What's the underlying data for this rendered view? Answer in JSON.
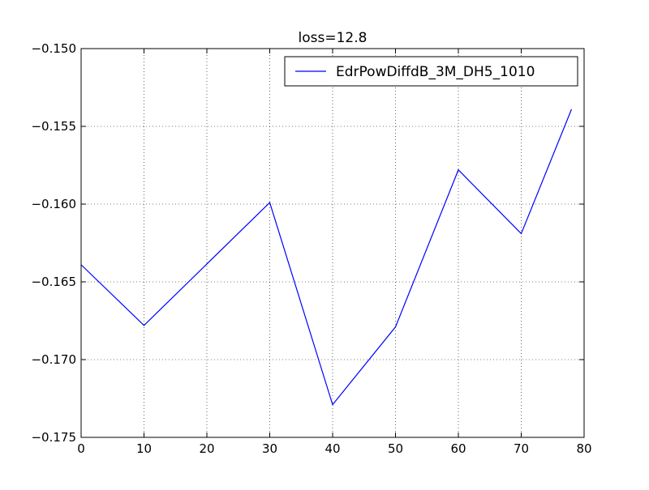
{
  "chart_data": {
    "type": "line",
    "title": "loss=12.8",
    "xlabel": "",
    "ylabel": "",
    "xlim": [
      0,
      80
    ],
    "ylim": [
      -0.175,
      -0.15
    ],
    "xticks": [
      0,
      10,
      20,
      30,
      40,
      50,
      60,
      70,
      80
    ],
    "xtick_labels": [
      "0",
      "10",
      "20",
      "30",
      "40",
      "50",
      "60",
      "70",
      "80"
    ],
    "yticks": [
      -0.175,
      -0.17,
      -0.165,
      -0.16,
      -0.155,
      -0.15
    ],
    "ytick_labels": [
      "−0.175",
      "−0.170",
      "−0.165",
      "−0.160",
      "−0.155",
      "−0.150"
    ],
    "grid": true,
    "legend_position": "top-right",
    "series": [
      {
        "name": "EdrPowDiffdB_3M_DH5_1010",
        "color": "#0000ff",
        "x": [
          0,
          10,
          30,
          40,
          50,
          60,
          70,
          78
        ],
        "y": [
          -0.1639,
          -0.1678,
          -0.1599,
          -0.1729,
          -0.1679,
          -0.1578,
          -0.1619,
          -0.1539
        ]
      }
    ]
  }
}
